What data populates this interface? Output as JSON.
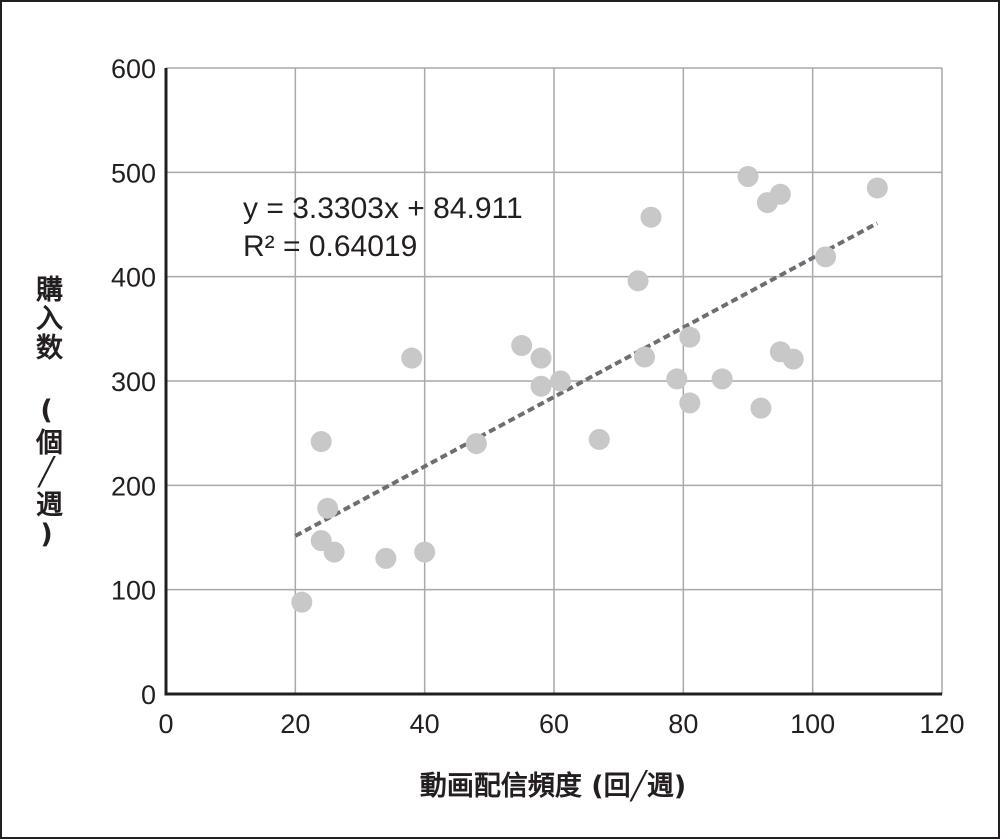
{
  "chart_data": {
    "type": "scatter",
    "title": "",
    "xlabel": "動画配信頻度 (回╱週)",
    "ylabel": "購入数 (個╱週)",
    "xlim": [
      0,
      120
    ],
    "ylim": [
      0,
      600
    ],
    "x_ticks": [
      "0",
      "20",
      "40",
      "60",
      "80",
      "100",
      "120"
    ],
    "y_ticks": [
      "0",
      "100",
      "200",
      "300",
      "400",
      "500",
      "600"
    ],
    "grid": true,
    "point_color": "#c8c8c8",
    "trend_color": "#6d6e71",
    "series": [
      {
        "points": [
          [
            21,
            88
          ],
          [
            24,
            242
          ],
          [
            24,
            147
          ],
          [
            25,
            178
          ],
          [
            26,
            136
          ],
          [
            34,
            130
          ],
          [
            38,
            322
          ],
          [
            40,
            136
          ],
          [
            48,
            240
          ],
          [
            55,
            334
          ],
          [
            58,
            322
          ],
          [
            58,
            295
          ],
          [
            61,
            300
          ],
          [
            67,
            244
          ],
          [
            73,
            396
          ],
          [
            74,
            323
          ],
          [
            75,
            457
          ],
          [
            79,
            302
          ],
          [
            81,
            342
          ],
          [
            81,
            279
          ],
          [
            86,
            302
          ],
          [
            90,
            496
          ],
          [
            92,
            274
          ],
          [
            93,
            471
          ],
          [
            95,
            479
          ],
          [
            95,
            328
          ],
          [
            97,
            321
          ],
          [
            102,
            419
          ],
          [
            110,
            485
          ]
        ]
      }
    ],
    "trendline": {
      "slope": 3.3303,
      "intercept": 84.911,
      "x_range": [
        20,
        110
      ],
      "equation": "y = 3.3303x + 84.911",
      "r_squared": "R² = 0.64019"
    }
  }
}
